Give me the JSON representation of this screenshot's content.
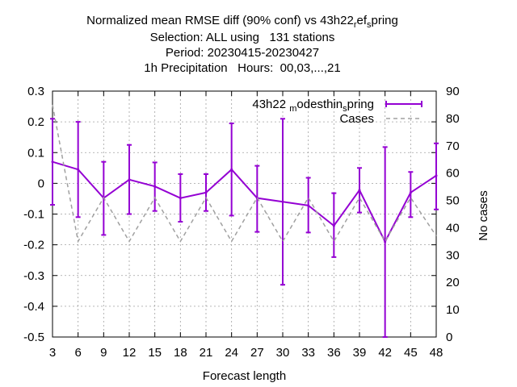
{
  "chart_data": {
    "type": "line",
    "title_lines": [
      "Normalized mean RMSE diff (90% conf) vs 43h22_ref_spring",
      "Selection: ALL using   131 stations",
      "Period: 20230415-20230427",
      "1h Precipitation   Hours:  00,03,...,21"
    ],
    "xlabel": "Forecast length",
    "ylabel": "",
    "y2label": "No cases",
    "x": [
      3,
      6,
      9,
      12,
      15,
      18,
      21,
      24,
      27,
      30,
      33,
      36,
      39,
      42,
      45,
      48
    ],
    "xlim": [
      3,
      48
    ],
    "ylim": [
      -0.5,
      0.3
    ],
    "y2lim": [
      0,
      90
    ],
    "xticks": [
      "3",
      "6",
      "9",
      "12",
      "15",
      "18",
      "21",
      "24",
      "27",
      "30",
      "33",
      "36",
      "39",
      "42",
      "45",
      "48"
    ],
    "yticks": [
      "0.3",
      "0.2",
      "0.1",
      "0",
      "-0.1",
      "-0.2",
      "-0.3",
      "-0.4",
      "-0.5"
    ],
    "y2ticks": [
      "90",
      "80",
      "70",
      "60",
      "50",
      "40",
      "30",
      "20",
      "10",
      "0"
    ],
    "grid": true,
    "legend_position": "top-right",
    "series": [
      {
        "name": "43h22_modesthin_spring",
        "color": "#9400d3",
        "axis": "left",
        "values": [
          0.07,
          0.045,
          -0.048,
          0.012,
          -0.01,
          -0.048,
          -0.03,
          0.045,
          -0.048,
          -0.06,
          -0.072,
          -0.138,
          -0.022,
          -0.19,
          -0.03,
          0.025
        ],
        "err_low": [
          -0.07,
          -0.11,
          -0.168,
          -0.1,
          -0.09,
          -0.125,
          -0.09,
          -0.105,
          -0.158,
          -0.33,
          -0.16,
          -0.24,
          -0.095,
          -0.5,
          -0.11,
          -0.085
        ],
        "err_high": [
          0.21,
          0.2,
          0.07,
          0.125,
          0.068,
          0.03,
          0.03,
          0.195,
          0.057,
          0.21,
          0.018,
          -0.032,
          0.05,
          0.118,
          0.037,
          0.13
        ]
      },
      {
        "name": "Cases",
        "color": "#a0a0a0",
        "axis": "right",
        "dashed": true,
        "values": [
          85,
          35,
          51,
          35,
          51,
          35,
          51,
          35,
          51,
          35,
          51,
          35,
          51,
          35,
          51,
          37
        ]
      }
    ]
  }
}
